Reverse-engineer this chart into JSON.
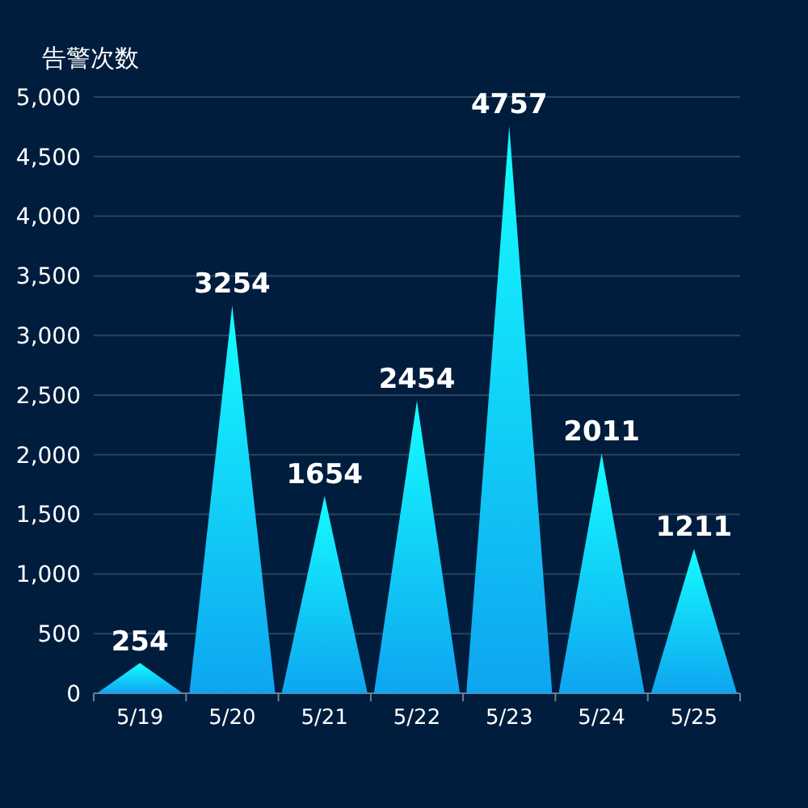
{
  "chart_data": {
    "type": "bar",
    "ylabel": "告警次数",
    "categories": [
      "5/19",
      "5/20",
      "5/21",
      "5/22",
      "5/23",
      "5/24",
      "5/25"
    ],
    "values": [
      254,
      3254,
      1654,
      2454,
      4757,
      2011,
      1211
    ],
    "color": "#0ea5f0",
    "ylim": [
      0,
      5000
    ],
    "yticks": [
      {
        "value": 0,
        "label": "0"
      },
      {
        "value": 500,
        "label": "500"
      },
      {
        "value": 1000,
        "label": "1,000"
      },
      {
        "value": 1500,
        "label": "1,500"
      },
      {
        "value": 2000,
        "label": "2,000"
      },
      {
        "value": 2500,
        "label": "2,500"
      },
      {
        "value": 3000,
        "label": "3,000"
      },
      {
        "value": 3500,
        "label": "3,500"
      },
      {
        "value": 4000,
        "label": "4,000"
      },
      {
        "value": 4500,
        "label": "4,500"
      },
      {
        "value": 5000,
        "label": "5,000"
      }
    ],
    "grid": "y",
    "data_labels": true
  }
}
